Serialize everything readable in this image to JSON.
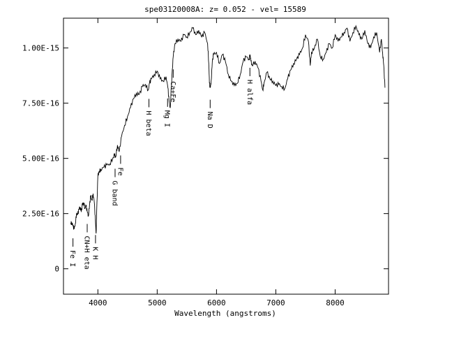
{
  "chart_data": {
    "type": "line",
    "title": "spe03120008A: z= 0.052 - vel= 15589",
    "xlabel": "Wavelength (angstroms)",
    "ylabel": "",
    "xlim": [
      3420,
      8900
    ],
    "ylim": [
      -1.15e-16,
      1.135e-15
    ],
    "xticks": [
      {
        "value": 4000,
        "label": "4000"
      },
      {
        "value": 5000,
        "label": "5000"
      },
      {
        "value": 6000,
        "label": "6000"
      },
      {
        "value": 7000,
        "label": "7000"
      },
      {
        "value": 8000,
        "label": "8000"
      }
    ],
    "yticks": [
      {
        "value": 0,
        "label": "0"
      },
      {
        "value": 2.5e-16,
        "label": "2.50E-16"
      },
      {
        "value": 5e-16,
        "label": "5.00E-16"
      },
      {
        "value": 7.5e-16,
        "label": "7.50E-16"
      },
      {
        "value": 1e-15,
        "label": "1.00E-15"
      }
    ],
    "grid": false,
    "series": [
      {
        "x": [
          3540,
          3560,
          3580,
          3600,
          3620,
          3640,
          3660,
          3680,
          3700,
          3720,
          3740,
          3760,
          3780,
          3800,
          3820,
          3840,
          3860,
          3880,
          3900,
          3920,
          3940,
          3960,
          3970,
          3980,
          4000,
          4020,
          4050,
          4100,
          4150,
          4200,
          4250,
          4280,
          4300,
          4330,
          4360,
          4400,
          4450,
          4500,
          4550,
          4600,
          4650,
          4700,
          4750,
          4800,
          4850,
          4870,
          4900,
          4950,
          5000,
          5050,
          5100,
          5150,
          5180,
          5200,
          5220,
          5250,
          5270,
          5300,
          5350,
          5400,
          5450,
          5500,
          5550,
          5600,
          5650,
          5700,
          5750,
          5800,
          5850,
          5870,
          5880,
          5895,
          5910,
          5930,
          5950,
          6000,
          6050,
          6100,
          6150,
          6200,
          6250,
          6300,
          6350,
          6400,
          6450,
          6500,
          6550,
          6565,
          6580,
          6600,
          6650,
          6700,
          6750,
          6780,
          6800,
          6850,
          6900,
          6950,
          7000,
          7050,
          7100,
          7150,
          7200,
          7250,
          7300,
          7350,
          7400,
          7450,
          7500,
          7550,
          7580,
          7600,
          7650,
          7700,
          7750,
          7800,
          7850,
          7900,
          7950,
          8000,
          8050,
          8100,
          8150,
          8200,
          8250,
          8300,
          8350,
          8400,
          8450,
          8500,
          8550,
          8600,
          8650,
          8700,
          8750,
          8780,
          8800,
          8820,
          8840
        ],
        "y": [
          2.05e-16,
          2.1e-16,
          1.95e-16,
          1.8e-16,
          2.05e-16,
          2.5e-16,
          2.45e-16,
          2.7e-16,
          2.8e-16,
          2.6e-16,
          2.9e-16,
          3e-16,
          2.75e-16,
          2.85e-16,
          2.6e-16,
          2.4e-16,
          2.9e-16,
          3.3e-16,
          3.1e-16,
          3.4e-16,
          3e-16,
          2.1e-16,
          1.6e-16,
          2.6e-16,
          4.2e-16,
          4.4e-16,
          4.5e-16,
          4.6e-16,
          4.7e-16,
          4.75e-16,
          5e-16,
          5.15e-16,
          5.05e-16,
          5.6e-16,
          5.3e-16,
          6e-16,
          6.5e-16,
          6.9e-16,
          7.3e-16,
          7.7e-16,
          7.95e-16,
          7.9e-16,
          8.25e-16,
          8.35e-16,
          8.1e-16,
          8.4e-16,
          8.6e-16,
          8.8e-16,
          8.95e-16,
          8.6e-16,
          8.5e-16,
          8.7e-16,
          8.2e-16,
          7.6e-16,
          7.3e-16,
          8.8e-16,
          9.6e-16,
          1.02e-15,
          1.04e-15,
          1.03e-15,
          1.06e-15,
          1.05e-15,
          1.07e-15,
          1.09e-15,
          1.06e-15,
          1.08e-15,
          1.05e-15,
          1.07e-15,
          1.02e-15,
          9.3e-16,
          8.4e-16,
          8.2e-16,
          8.5e-16,
          9.4e-16,
          9.7e-16,
          9.8e-16,
          9.3e-16,
          9.7e-16,
          9.4e-16,
          8.8e-16,
          8.5e-16,
          8.3e-16,
          8.4e-16,
          8.8e-16,
          9.4e-16,
          9.6e-16,
          9.5e-16,
          9.7e-16,
          9.4e-16,
          9.2e-16,
          9.4e-16,
          9.1e-16,
          8.5e-16,
          8.1e-16,
          8.4e-16,
          8.9e-16,
          8.6e-16,
          8.5e-16,
          8.3e-16,
          8.35e-16,
          8.25e-16,
          8.15e-16,
          8.6e-16,
          9e-16,
          9.3e-16,
          9.5e-16,
          9.7e-16,
          1e-15,
          1.06e-15,
          1.03e-15,
          9.2e-16,
          9.8e-16,
          1e-15,
          1.04e-15,
          9.6e-16,
          9.5e-16,
          9.8e-16,
          1.02e-15,
          1e-15,
          1.06e-15,
          1.03e-15,
          1.05e-15,
          1.07e-15,
          1.09e-15,
          1.03e-15,
          1.07e-15,
          1.1e-15,
          1.06e-15,
          1.04e-15,
          1.08e-15,
          1.02e-15,
          1e-15,
          1.05e-15,
          1.07e-15,
          9.8e-16,
          1.04e-15,
          9.8e-16,
          9.2e-16,
          8.2e-16
        ]
      }
    ],
    "lines": [
      {
        "label": "Fe I",
        "x": 3580
      },
      {
        "label": "CN+H eta",
        "x": 3820
      },
      {
        "label": "K H",
        "x": 3960
      },
      {
        "label": "G band",
        "x": 4290
      },
      {
        "label": "Fe",
        "x": 4383
      },
      {
        "label": "H beta",
        "x": 4861
      },
      {
        "label": "Ca+Fe",
        "x": 5270
      },
      {
        "label": "Mg I",
        "x": 5175
      },
      {
        "label": "Na D",
        "x": 5893
      },
      {
        "label": "H alfa",
        "x": 6563
      }
    ]
  }
}
